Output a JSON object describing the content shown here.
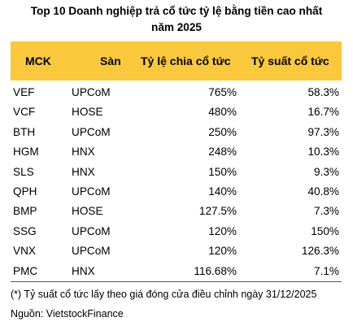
{
  "title": {
    "line1": "Top 10 Doanh nghiệp trả cổ tức tỷ lệ bằng tiền cao nhất",
    "line2": "năm 2025"
  },
  "colors": {
    "header_bg": "#f9c83c",
    "text": "#000000",
    "rule": "#555555"
  },
  "table": {
    "headers": [
      "MCK",
      "Sàn",
      "Tỷ lệ chia cổ tức",
      "Tỷ suất cổ tức"
    ],
    "rows": [
      [
        "VEF",
        "UPCoM",
        "765%",
        "58.3%"
      ],
      [
        "VCF",
        "HOSE",
        "480%",
        "16.7%"
      ],
      [
        "BTH",
        "UPCoM",
        "250%",
        "97.3%"
      ],
      [
        "HGM",
        "HNX",
        "248%",
        "10.3%"
      ],
      [
        "SLS",
        "HNX",
        "150%",
        "9.3%"
      ],
      [
        "QPH",
        "UPCoM",
        "140%",
        "40.8%"
      ],
      [
        "BMP",
        "HOSE",
        "127.5%",
        "7.3%"
      ],
      [
        "SSG",
        "UPCoM",
        "120%",
        "150%"
      ],
      [
        "VNX",
        "UPCoM",
        "120%",
        "126.3%"
      ],
      [
        "PMC",
        "HNX",
        "116.68%",
        "7.1%"
      ]
    ]
  },
  "footnote": "(*) Tỷ suất cổ tức lấy theo giá đóng cửa điều chỉnh ngày 31/12/2025",
  "source": "Nguồn: VietstockFinance"
}
